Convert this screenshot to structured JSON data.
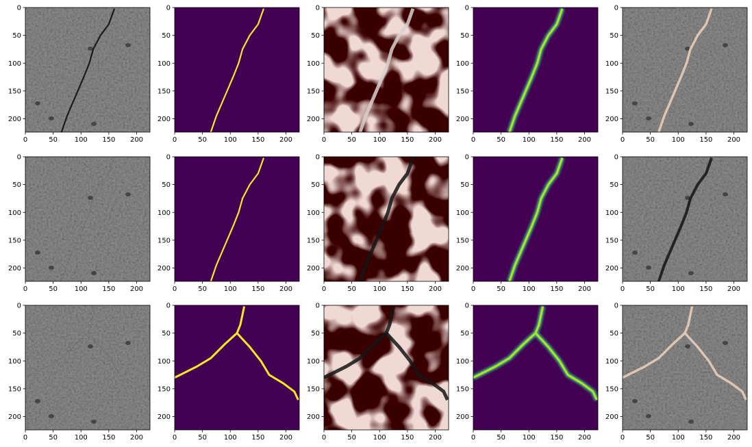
{
  "figure": {
    "rows": 3,
    "cols": 5,
    "x_ticks": [
      "0",
      "50",
      "100",
      "150",
      "200"
    ],
    "y_ticks": [
      "0",
      "50",
      "100",
      "150",
      "200"
    ],
    "x_tick_values": [
      0,
      50,
      100,
      150,
      200
    ],
    "y_tick_values": [
      0,
      50,
      100,
      150,
      200
    ],
    "axis_range": [
      0,
      224
    ],
    "panel_types": [
      "concrete-photo",
      "ground-truth-mask",
      "saliency-heatmap",
      "prediction-mask",
      "overlay"
    ],
    "colors": {
      "concrete": "#8f8f8f",
      "mask_background": "#440154",
      "mask_foreground": "#fde725",
      "prediction_mid": "#35b779",
      "heat_dark": "#3a0000",
      "heat_light": "#f6c3b8",
      "crack_dark": "#1a1a1a",
      "crack_light": "#e8cdb8"
    },
    "crack_paths": [
      [
        [
          160,
          2
        ],
        [
          150,
          30
        ],
        [
          135,
          50
        ],
        [
          122,
          75
        ],
        [
          115,
          100
        ],
        [
          105,
          125
        ],
        [
          90,
          160
        ],
        [
          75,
          195
        ],
        [
          65,
          224
        ]
      ],
      [
        [
          160,
          2
        ],
        [
          150,
          30
        ],
        [
          135,
          50
        ],
        [
          122,
          75
        ],
        [
          115,
          100
        ],
        [
          105,
          125
        ],
        [
          90,
          160
        ],
        [
          75,
          195
        ],
        [
          65,
          224
        ]
      ],
      [
        [
          125,
          2
        ],
        [
          118,
          35
        ],
        [
          112,
          50
        ],
        [
          90,
          70
        ],
        [
          65,
          95
        ],
        [
          40,
          110
        ],
        [
          10,
          125
        ],
        [
          0,
          130
        ],
        null,
        [
          112,
          50
        ],
        [
          135,
          75
        ],
        [
          155,
          100
        ],
        [
          170,
          125
        ],
        [
          195,
          140
        ],
        [
          215,
          155
        ],
        [
          222,
          170
        ]
      ]
    ]
  }
}
